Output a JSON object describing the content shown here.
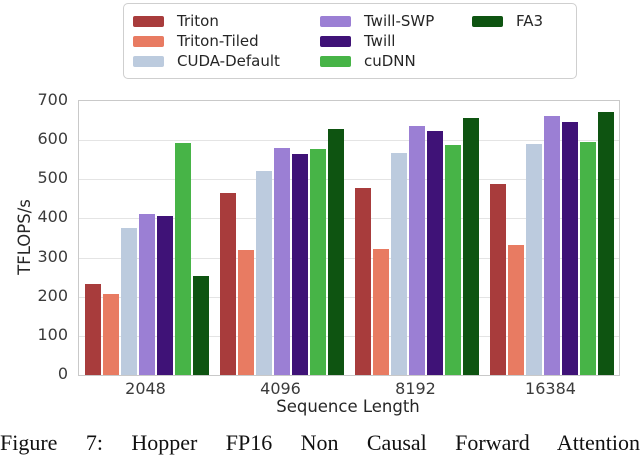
{
  "chart_data": {
    "type": "bar",
    "categories": [
      "2048",
      "4096",
      "8192",
      "16384"
    ],
    "series": [
      {
        "name": "Triton",
        "color": "#A83C3C",
        "values": [
          232,
          466,
          479,
          489
        ]
      },
      {
        "name": "Triton-Tiled",
        "color": "#E87B62",
        "values": [
          206,
          319,
          323,
          331
        ]
      },
      {
        "name": "CUDA-Default",
        "color": "#BCCBDE",
        "values": [
          375,
          522,
          568,
          591
        ]
      },
      {
        "name": "Twill-SWP",
        "color": "#9B7FD4",
        "values": [
          412,
          580,
          636,
          662
        ]
      },
      {
        "name": "Twill",
        "color": "#3F1277",
        "values": [
          406,
          565,
          624,
          647
        ]
      },
      {
        "name": "cuDNN",
        "color": "#47B447",
        "values": [
          593,
          577,
          588,
          595
        ]
      },
      {
        "name": "FA3",
        "color": "#0E5411",
        "values": [
          254,
          628,
          656,
          671
        ]
      }
    ],
    "title": "",
    "xlabel": "Sequence Length",
    "ylabel": "TFLOPS/s",
    "ylim": [
      0,
      700
    ],
    "yticks": [
      0,
      100,
      200,
      300,
      400,
      500,
      600,
      700
    ],
    "grid": true,
    "legend_position": "top",
    "legend_columns": 3
  },
  "colors": {
    "gridline": "#e4e4e4",
    "spine": "#c9c9c9",
    "tick_label": "#3b3b3b"
  },
  "caption": {
    "text": "Figure 7: Hopper FP16 Non Causal Forward Attention"
  }
}
